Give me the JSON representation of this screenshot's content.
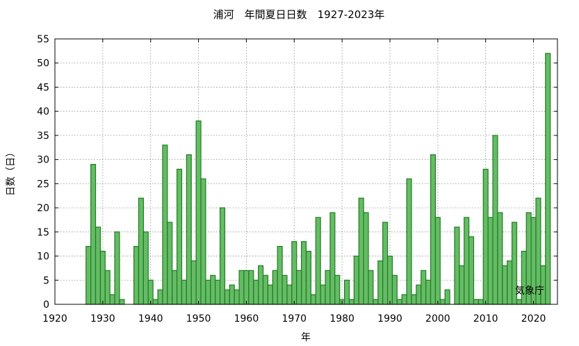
{
  "chart_data": {
    "type": "bar",
    "title": "浦河　年間夏日日数　1927-2023年",
    "xlabel": "年",
    "ylabel": "日数（日）",
    "annotation": "気象庁",
    "xlim": [
      1920,
      2025
    ],
    "ylim": [
      0,
      55
    ],
    "xticks": [
      1920,
      1930,
      1940,
      1950,
      1960,
      1970,
      1980,
      1990,
      2000,
      2010,
      2020
    ],
    "yticks": [
      0,
      5,
      10,
      15,
      20,
      25,
      30,
      35,
      40,
      45,
      50,
      55
    ],
    "grid": true,
    "bar_fill": "#66bb66",
    "bar_stroke": "#1e7d1e",
    "x": [
      1927,
      1928,
      1929,
      1930,
      1931,
      1932,
      1933,
      1934,
      1935,
      1936,
      1937,
      1938,
      1939,
      1940,
      1941,
      1942,
      1943,
      1944,
      1945,
      1946,
      1947,
      1948,
      1949,
      1950,
      1951,
      1952,
      1953,
      1954,
      1955,
      1956,
      1957,
      1958,
      1959,
      1960,
      1961,
      1962,
      1963,
      1964,
      1965,
      1966,
      1967,
      1968,
      1969,
      1970,
      1971,
      1972,
      1973,
      1974,
      1975,
      1976,
      1977,
      1978,
      1979,
      1980,
      1981,
      1982,
      1983,
      1984,
      1985,
      1986,
      1987,
      1988,
      1989,
      1990,
      1991,
      1992,
      1993,
      1994,
      1995,
      1996,
      1997,
      1998,
      1999,
      2000,
      2001,
      2002,
      2003,
      2004,
      2005,
      2006,
      2007,
      2008,
      2009,
      2010,
      2011,
      2012,
      2013,
      2014,
      2015,
      2016,
      2017,
      2018,
      2019,
      2020,
      2021,
      2022,
      2023
    ],
    "values": [
      12,
      29,
      16,
      11,
      7,
      2,
      15,
      1,
      0,
      0,
      12,
      22,
      15,
      5,
      1,
      3,
      33,
      17,
      7,
      28,
      5,
      31,
      9,
      38,
      26,
      5,
      6,
      5,
      20,
      3,
      4,
      3,
      7,
      7,
      7,
      5,
      8,
      6,
      4,
      7,
      12,
      6,
      4,
      13,
      7,
      13,
      11,
      2,
      18,
      4,
      7,
      19,
      6,
      1,
      5,
      1,
      10,
      22,
      19,
      7,
      1,
      9,
      17,
      10,
      6,
      1,
      2,
      26,
      2,
      4,
      7,
      5,
      31,
      18,
      1,
      3,
      0,
      16,
      8,
      18,
      14,
      1,
      1,
      28,
      18,
      35,
      19,
      8,
      9,
      17,
      1,
      11,
      19,
      18,
      22,
      8,
      52
    ]
  }
}
